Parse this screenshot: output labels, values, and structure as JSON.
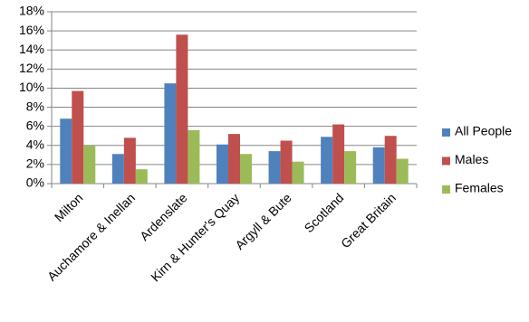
{
  "chart_data": {
    "type": "bar",
    "categories": [
      "Milton",
      "Auchamore & Inellan",
      "Ardenslate",
      "Kirn & Hunter's Quay",
      "Argyll & Bute",
      "Scotland",
      "Great Britain"
    ],
    "series": [
      {
        "name": "All People",
        "color": "#4f81bd",
        "values": [
          6.8,
          3.1,
          10.5,
          4.1,
          3.4,
          4.9,
          3.8
        ]
      },
      {
        "name": "Males",
        "color": "#c0504d",
        "values": [
          9.7,
          4.8,
          15.6,
          5.2,
          4.5,
          6.2,
          5.0
        ]
      },
      {
        "name": "Females",
        "color": "#9bbb59",
        "values": [
          4.0,
          1.5,
          5.6,
          3.1,
          2.3,
          3.4,
          2.6
        ]
      }
    ],
    "ylim": [
      0,
      18
    ],
    "yticks": [
      {
        "value": 0,
        "label": "0%"
      },
      {
        "value": 2,
        "label": "2%"
      },
      {
        "value": 4,
        "label": "4%"
      },
      {
        "value": 6,
        "label": "6%"
      },
      {
        "value": 8,
        "label": "8%"
      },
      {
        "value": 10,
        "label": "10%"
      },
      {
        "value": 12,
        "label": "12%"
      },
      {
        "value": 14,
        "label": "14%"
      },
      {
        "value": 16,
        "label": "16%"
      },
      {
        "value": 18,
        "label": "18%"
      }
    ],
    "grid": true,
    "legend": "right"
  }
}
